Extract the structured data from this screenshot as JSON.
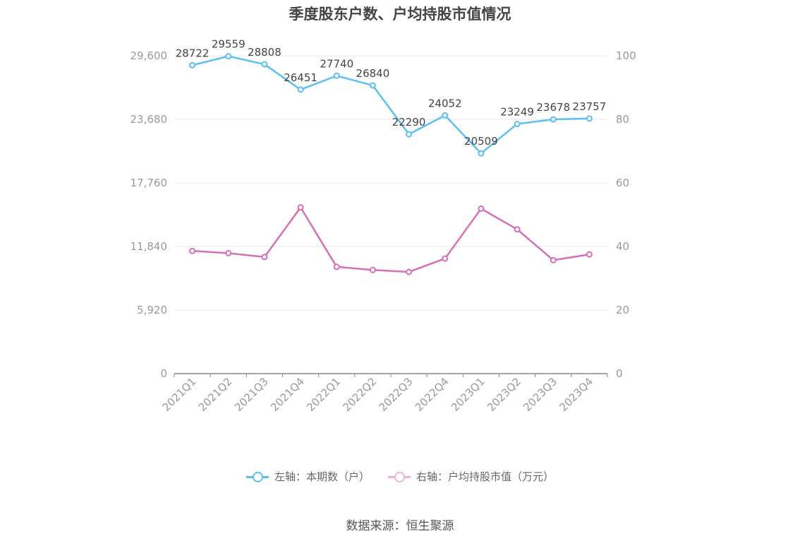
{
  "title": "季度股东户数、户均持股市值情况",
  "source": "数据来源：恒生聚源",
  "colors": {
    "series1": "#5bbff2",
    "series2": "#d66fb4",
    "grid": "#e3e3f0",
    "axis": "#888888"
  },
  "chart_data": {
    "type": "line",
    "title": "季度股东户数、户均持股市值情况",
    "categories": [
      "2021Q1",
      "2021Q2",
      "2021Q3",
      "2021Q4",
      "2022Q1",
      "2022Q2",
      "2022Q3",
      "2022Q4",
      "2023Q1",
      "2023Q2",
      "2023Q3",
      "2023Q4"
    ],
    "y_left": {
      "ticks": [
        "0",
        "5,920",
        "11,840",
        "17,760",
        "23,680",
        "29,600"
      ],
      "range": [
        0,
        29600
      ]
    },
    "y_right": {
      "ticks": [
        "0",
        "20",
        "40",
        "60",
        "80",
        "100"
      ],
      "range": [
        0,
        100
      ]
    },
    "grid": true,
    "legend_position": "bottom",
    "series": [
      {
        "name": "左轴：本期数（户）",
        "axis": "left",
        "color": "#5bbff2",
        "values": [
          28722,
          29559,
          28808,
          26451,
          27740,
          26840,
          22290,
          24052,
          20509,
          23249,
          23678,
          23757
        ],
        "labels": [
          "28722",
          "29559",
          "28808",
          "26451",
          "27740",
          "26840",
          "22290",
          "24052",
          "20509",
          "23249",
          "23678",
          "23757"
        ]
      },
      {
        "name": "右轴：户均持股市值（万元）",
        "axis": "right",
        "color": "#d66fb4",
        "values": [
          38.6,
          37.9,
          36.7,
          52.3,
          33.6,
          32.6,
          32.0,
          36.2,
          51.9,
          45.4,
          35.7,
          37.5
        ]
      }
    ]
  }
}
